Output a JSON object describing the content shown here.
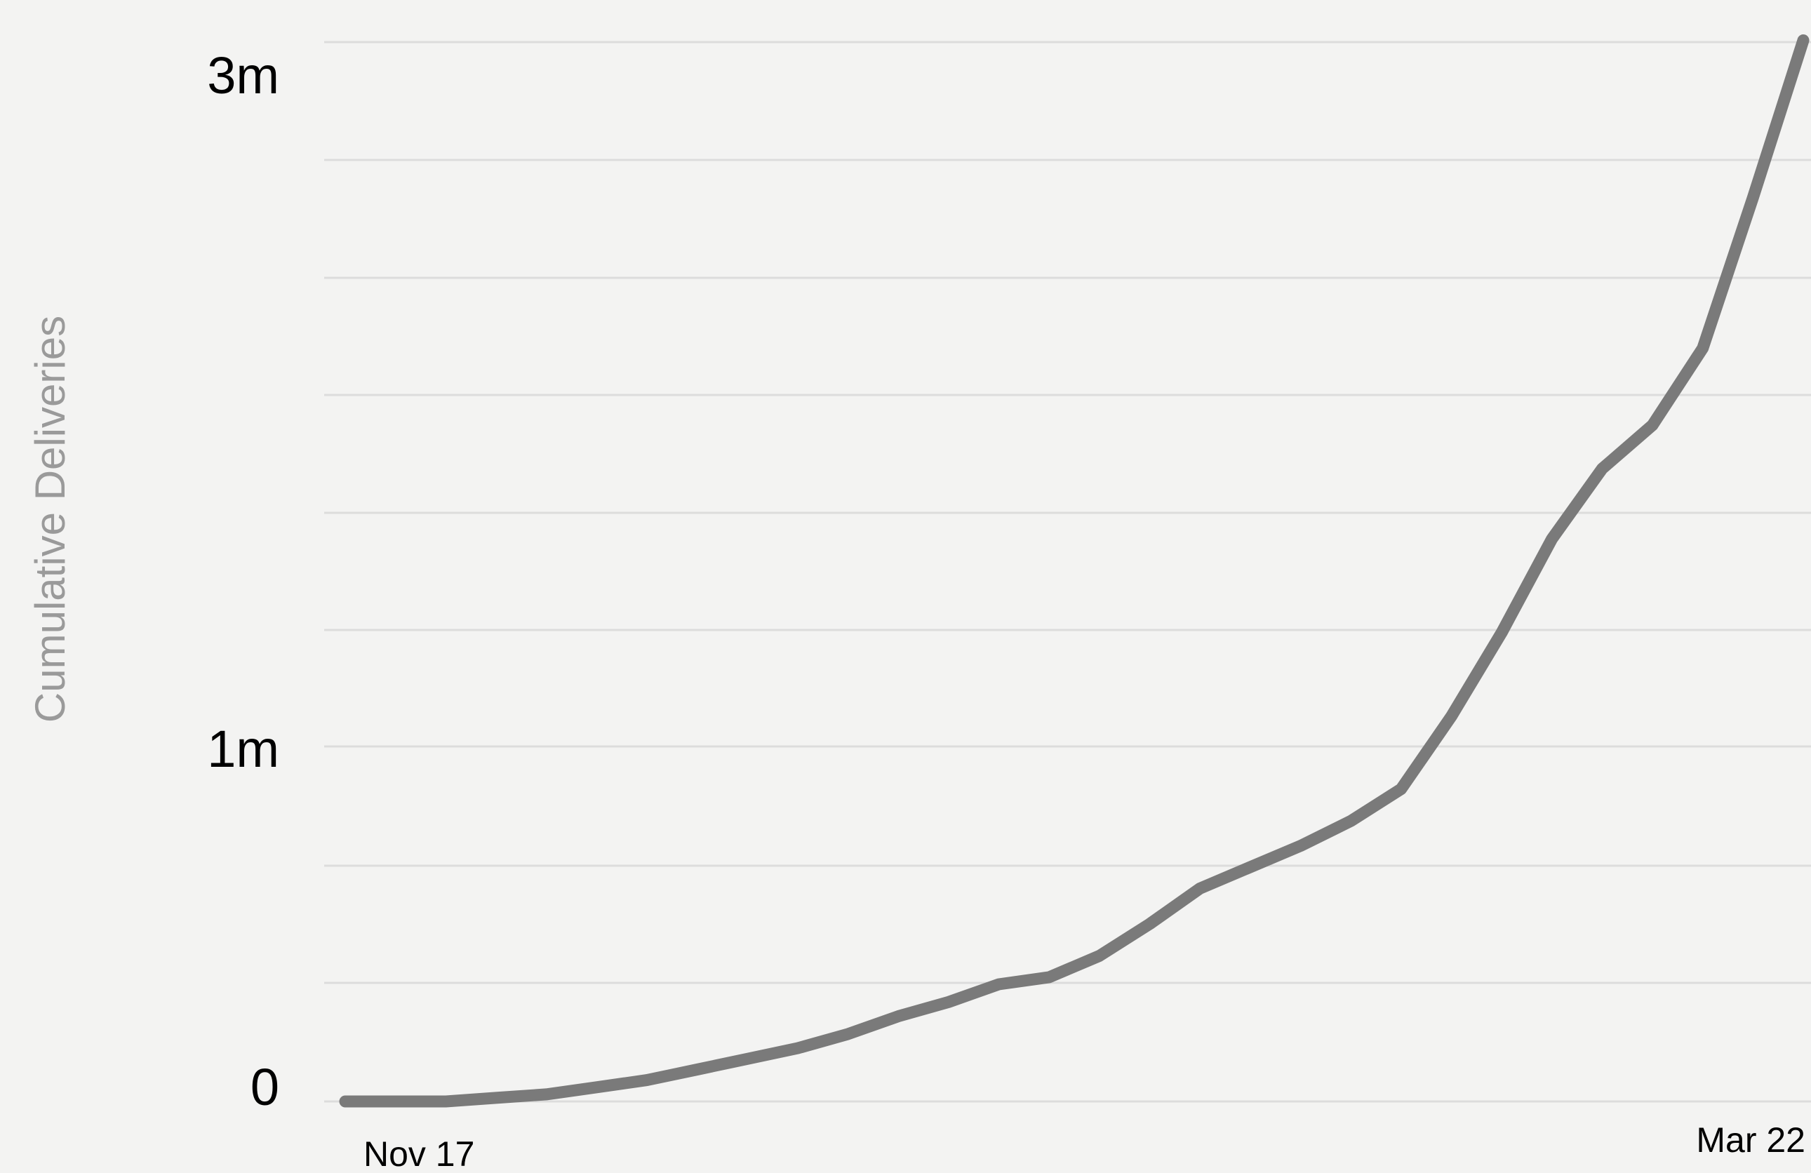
{
  "chart_data": {
    "type": "line",
    "title": "",
    "xlabel": "",
    "ylabel": "Cumulative Deliveries",
    "x_ticks": [
      "Nov 17",
      "Mar 22"
    ],
    "y_ticks": [
      {
        "value": 0,
        "label": "0"
      },
      {
        "value": 1000000,
        "label": "1m"
      },
      {
        "value": 3000000,
        "label": "3m"
      }
    ],
    "ylim": [
      0,
      3000000
    ],
    "grid": true,
    "legend": "none",
    "series": [
      {
        "color": "#7a7a7a",
        "points": [
          {
            "x": "Nov 17",
            "y": 0
          },
          {
            "x": "",
            "y": 0
          },
          {
            "x": "",
            "y": 0
          },
          {
            "x": "",
            "y": 10000
          },
          {
            "x": "",
            "y": 20000
          },
          {
            "x": "",
            "y": 40000
          },
          {
            "x": "",
            "y": 60000
          },
          {
            "x": "",
            "y": 90000
          },
          {
            "x": "",
            "y": 120000
          },
          {
            "x": "",
            "y": 150000
          },
          {
            "x": "",
            "y": 190000
          },
          {
            "x": "",
            "y": 240000
          },
          {
            "x": "",
            "y": 280000
          },
          {
            "x": "",
            "y": 330000
          },
          {
            "x": "",
            "y": 350000
          },
          {
            "x": "",
            "y": 410000
          },
          {
            "x": "",
            "y": 500000
          },
          {
            "x": "",
            "y": 600000
          },
          {
            "x": "",
            "y": 660000
          },
          {
            "x": "",
            "y": 720000
          },
          {
            "x": "",
            "y": 790000
          },
          {
            "x": "",
            "y": 880000
          },
          {
            "x": "",
            "y": 1090000
          },
          {
            "x": "",
            "y": 1340000
          },
          {
            "x": "",
            "y": 1620000
          },
          {
            "x": "",
            "y": 1830000
          },
          {
            "x": "",
            "y": 1960000
          },
          {
            "x": "",
            "y": 2190000
          },
          {
            "x": "",
            "y": 2640000
          },
          {
            "x": "Mar 22",
            "y": 3110000
          }
        ]
      }
    ],
    "colors": {
      "background": "#f3f3f2",
      "gridline": "#dcdcdc",
      "line": "#7a7a7a",
      "y_label": "#9a9a9a",
      "tick_text": "#000000"
    }
  }
}
